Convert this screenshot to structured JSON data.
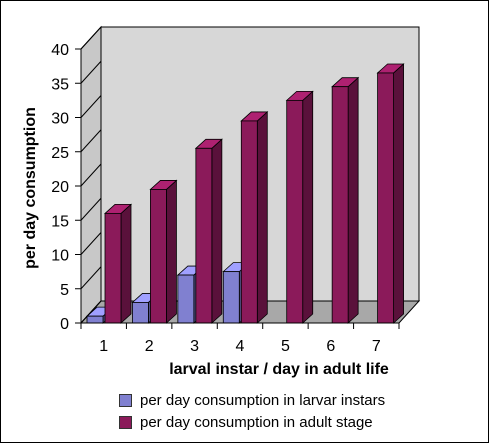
{
  "chart_data": {
    "type": "bar",
    "categories": [
      "1",
      "2",
      "3",
      "4",
      "5",
      "6",
      "7"
    ],
    "series": [
      {
        "name": "per day consumption in larvar instars",
        "values": [
          1,
          3,
          7,
          7.5,
          null,
          null,
          null
        ],
        "color": "#8080d0"
      },
      {
        "name": "per day consumption in adult stage",
        "values": [
          16,
          19.5,
          25.5,
          29.5,
          32.5,
          34.5,
          36.5
        ],
        "color": "#8b1a5a"
      }
    ],
    "xlabel": "larval instar / day in adult life",
    "ylabel": "per day consumption",
    "ylim": [
      0,
      40
    ],
    "yticks": [
      "0",
      "5",
      "10",
      "15",
      "20",
      "25",
      "30",
      "35",
      "40"
    ],
    "legend_position": "bottom",
    "chart_style": "3d-clustered-bar",
    "wall_color": "#d7d7d7"
  }
}
